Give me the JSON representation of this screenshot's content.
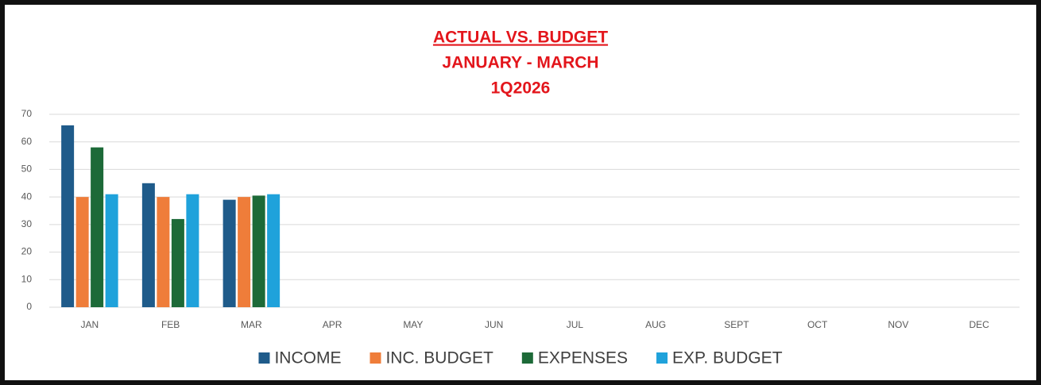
{
  "chart_data": {
    "type": "bar",
    "title": "ACTUAL VS. BUDGET",
    "subtitle": [
      "JANUARY - MARCH",
      "1Q2026"
    ],
    "categories": [
      "JAN",
      "FEB",
      "MAR",
      "APR",
      "MAY",
      "JUN",
      "JUL",
      "AUG",
      "SEPT",
      "OCT",
      "NOV",
      "DEC"
    ],
    "series": [
      {
        "name": "INCOME",
        "color": "#1f5b8a",
        "values": [
          66,
          45,
          39,
          null,
          null,
          null,
          null,
          null,
          null,
          null,
          null,
          null
        ]
      },
      {
        "name": "INC. BUDGET",
        "color": "#ef7d3a",
        "values": [
          40,
          40,
          40,
          null,
          null,
          null,
          null,
          null,
          null,
          null,
          null,
          null
        ]
      },
      {
        "name": "EXPENSES",
        "color": "#1d6a38",
        "values": [
          58,
          32,
          40.5,
          null,
          null,
          null,
          null,
          null,
          null,
          null,
          null,
          null
        ]
      },
      {
        "name": "EXP. BUDGET",
        "color": "#1fa2db",
        "values": [
          41,
          41,
          41,
          null,
          null,
          null,
          null,
          null,
          null,
          null,
          null,
          null
        ]
      }
    ],
    "ylim": [
      0,
      70
    ],
    "yticks": [
      0,
      10,
      20,
      30,
      40,
      50,
      60,
      70
    ],
    "grid": true,
    "legend": "bottom"
  }
}
